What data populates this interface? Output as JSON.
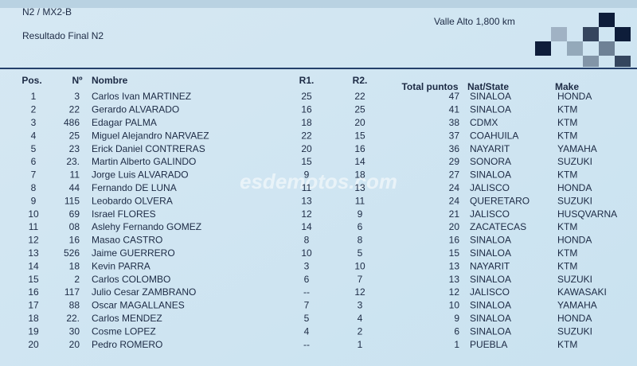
{
  "header": {
    "category": "N2 / MX2-B",
    "title": "Resultado Final N2",
    "venue": "Valle Alto 1,800 km"
  },
  "watermark": "esdemotos.com",
  "table": {
    "columns": [
      "Pos.",
      "Nº",
      "Nombre",
      "R1.",
      "R2.",
      "Total puntos",
      "Nat/State",
      "Make"
    ],
    "rows": [
      [
        "1",
        "3",
        "Carlos Ivan MARTINEZ",
        "25",
        "22",
        "47",
        "SINALOA",
        "HONDA"
      ],
      [
        "2",
        "22",
        "Gerardo ALVARADO",
        "16",
        "25",
        "41",
        "SINALOA",
        "KTM"
      ],
      [
        "3",
        "486",
        "Edagar PALMA",
        "18",
        "20",
        "38",
        "CDMX",
        "KTM"
      ],
      [
        "4",
        "25",
        "Miguel Alejandro NARVAEZ",
        "22",
        "15",
        "37",
        "COAHUILA",
        "KTM"
      ],
      [
        "5",
        "23",
        "Erick Daniel CONTRERAS",
        "20",
        "16",
        "36",
        "NAYARIT",
        "YAMAHA"
      ],
      [
        "6",
        "23.",
        "Martin Alberto GALINDO",
        "15",
        "14",
        "29",
        "SONORA",
        "SUZUKI"
      ],
      [
        "7",
        "11",
        "Jorge Luis ALVARADO",
        "9",
        "18",
        "27",
        "SINALOA",
        "KTM"
      ],
      [
        "8",
        "44",
        "Fernando DE LUNA",
        "11",
        "13",
        "24",
        "JALISCO",
        "HONDA"
      ],
      [
        "9",
        "115",
        "Leobardo OLVERA",
        "13",
        "11",
        "24",
        "QUERETARO",
        "SUZUKI"
      ],
      [
        "10",
        "69",
        "Israel FLORES",
        "12",
        "9",
        "21",
        "JALISCO",
        "HUSQVARNA"
      ],
      [
        "11",
        "08",
        "Aslehy Fernando GOMEZ",
        "14",
        "6",
        "20",
        "ZACATECAS",
        "KTM"
      ],
      [
        "12",
        "16",
        "Masao CASTRO",
        "8",
        "8",
        "16",
        "SINALOA",
        "HONDA"
      ],
      [
        "13",
        "526",
        "Jaime GUERRERO",
        "10",
        "5",
        "15",
        "SINALOA",
        "KTM"
      ],
      [
        "14",
        "18",
        "Kevin PARRA",
        "3",
        "10",
        "13",
        "NAYARIT",
        "KTM"
      ],
      [
        "15",
        "2",
        "Carlos COLOMBO",
        "6",
        "7",
        "13",
        "SINALOA",
        "SUZUKI"
      ],
      [
        "16",
        "117",
        "Julio Cesar ZAMBRANO",
        "--",
        "12",
        "12",
        "JALISCO",
        "KAWASAKI"
      ],
      [
        "17",
        "88",
        "Oscar MAGALLANES",
        "7",
        "3",
        "10",
        "SINALOA",
        "YAMAHA"
      ],
      [
        "18",
        "22.",
        "Carlos MENDEZ",
        "5",
        "4",
        "9",
        "SINALOA",
        "HONDA"
      ],
      [
        "19",
        "30",
        "Cosme LOPEZ",
        "4",
        "2",
        "6",
        "SINALOA",
        "SUZUKI"
      ],
      [
        "20",
        "20",
        "Pedro ROMERO",
        "--",
        "1",
        "1",
        "PUEBLA",
        "KTM"
      ]
    ]
  }
}
